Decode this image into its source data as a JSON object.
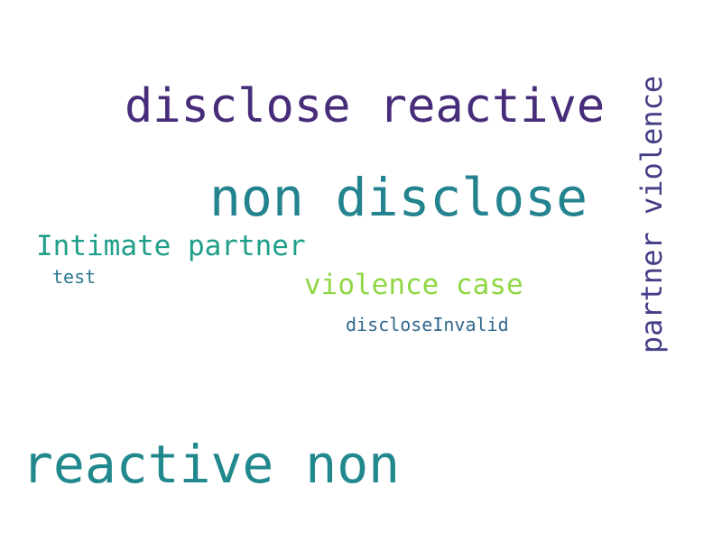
{
  "words": [
    {
      "text": "disclose reactive",
      "color": "#472c7a"
    },
    {
      "text": "non disclose",
      "color": "#23838e"
    },
    {
      "text": "reactive non",
      "color": "#21888d"
    },
    {
      "text": "Intimate partner",
      "color": "#1f9e89"
    },
    {
      "text": "test",
      "color": "#2a788e"
    },
    {
      "text": "violence case",
      "color": "#8fd744"
    },
    {
      "text": "discloseInvalid",
      "color": "#31688e"
    },
    {
      "text": "partner violence",
      "color": "#433e85"
    }
  ]
}
